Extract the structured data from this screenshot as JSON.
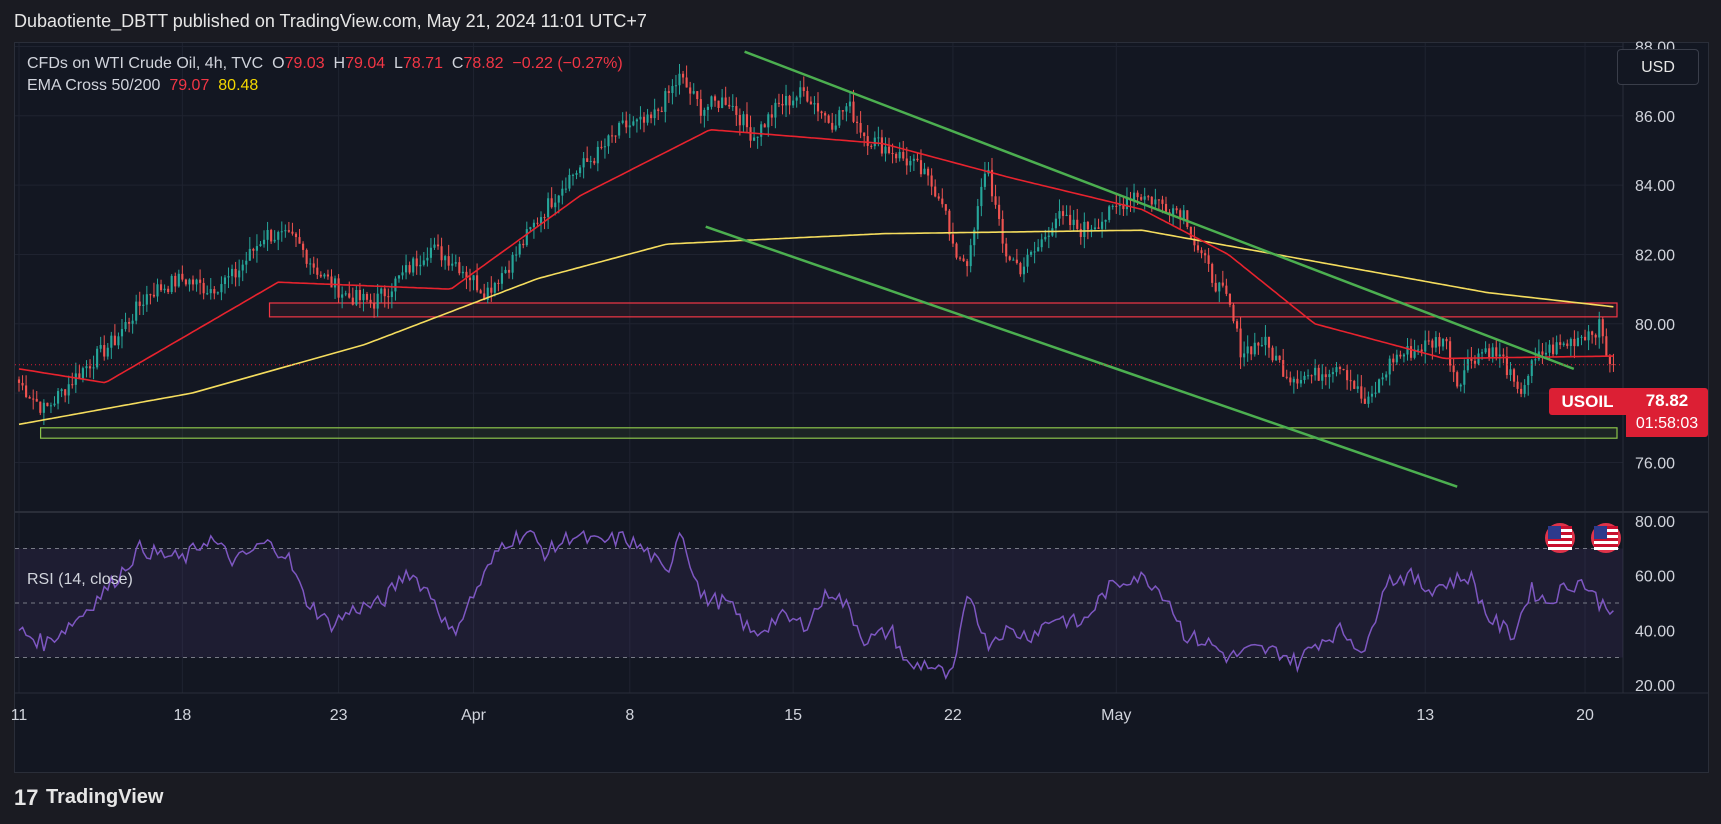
{
  "header": {
    "publisher_line": "Dubaotiente_DBTT published on TradingView.com, May 21, 2024 11:01 UTC+7"
  },
  "legend": {
    "symbol": "CFDs on WTI Crude Oil, 4h, TVC",
    "open_label": "O",
    "open": "79.03",
    "high_label": "H",
    "high": "79.04",
    "low_label": "L",
    "low": "78.71",
    "close_label": "C",
    "close": "78.82",
    "change": "−0.22 (−0.27%)",
    "ema_label": "EMA Cross 50/200",
    "ema50": "79.07",
    "ema200": "80.48"
  },
  "currency_button": "USD",
  "rsi_label": "RSI (14, close)",
  "price_tag": {
    "symbol": "USOIL",
    "price": "78.82",
    "countdown": "01:58:03"
  },
  "footer": {
    "brand": "TradingView",
    "logo_glyph": "17"
  },
  "colors": {
    "background": "#131722",
    "up": "#26a69a",
    "down": "#ef5350",
    "ema50": "#e8232e",
    "ema200": "#f5dd5e",
    "trendline": "#4caf50",
    "resistance_zone": "#f23645",
    "support_zone": "#8bc34a",
    "rsi": "#7e57c2"
  },
  "chart_data": [
    {
      "type": "candlestick",
      "title": "CFDs on WTI Crude Oil, 4h, TVC",
      "x_tick_labels": [
        "11",
        "18",
        "23",
        "Apr",
        "8",
        "15",
        "22",
        "May",
        "13",
        "20"
      ],
      "y_axis": {
        "ticks": [
          76,
          78,
          80,
          82,
          84,
          86,
          88
        ],
        "tick_labels": [
          "76.00",
          "78.00",
          "80.00",
          "82.00",
          "84.00",
          "86.00",
          "88.00"
        ],
        "ylim": [
          74.6,
          88.1
        ]
      },
      "grid": true,
      "close_path_points": [
        [
          0,
          78.3
        ],
        [
          6,
          77.5
        ],
        [
          14,
          78.6
        ],
        [
          22,
          79.5
        ],
        [
          30,
          80.9
        ],
        [
          38,
          81.3
        ],
        [
          44,
          81.0
        ],
        [
          50,
          81.4
        ],
        [
          57,
          82.6
        ],
        [
          64,
          82.4
        ],
        [
          70,
          81.4
        ],
        [
          76,
          80.8
        ],
        [
          82,
          80.6
        ],
        [
          88,
          81.3
        ],
        [
          95,
          82.2
        ],
        [
          101,
          81.8
        ],
        [
          108,
          80.9
        ],
        [
          114,
          81.8
        ],
        [
          120,
          83.0
        ],
        [
          127,
          84.2
        ],
        [
          134,
          84.9
        ],
        [
          140,
          85.7
        ],
        [
          146,
          85.8
        ],
        [
          153,
          87.1
        ],
        [
          158,
          86.2
        ],
        [
          164,
          86.5
        ],
        [
          170,
          85.4
        ],
        [
          176,
          86.3
        ],
        [
          182,
          86.7
        ],
        [
          188,
          85.8
        ],
        [
          192,
          86.3
        ],
        [
          196,
          85.4
        ],
        [
          202,
          85.0
        ],
        [
          208,
          84.5
        ],
        [
          214,
          83.6
        ],
        [
          216,
          82.1
        ],
        [
          220,
          81.8
        ],
        [
          224,
          84.7
        ],
        [
          228,
          82.1
        ],
        [
          232,
          81.6
        ],
        [
          236,
          82.2
        ],
        [
          240,
          83.1
        ],
        [
          246,
          82.7
        ],
        [
          252,
          83.1
        ],
        [
          258,
          83.8
        ],
        [
          264,
          83.5
        ],
        [
          270,
          83.2
        ],
        [
          272,
          82.4
        ],
        [
          276,
          81.4
        ],
        [
          280,
          80.6
        ],
        [
          283,
          79.2
        ],
        [
          288,
          79.5
        ],
        [
          294,
          78.5
        ],
        [
          300,
          78.5
        ],
        [
          306,
          78.9
        ],
        [
          312,
          77.6
        ],
        [
          318,
          79.0
        ],
        [
          324,
          79.3
        ],
        [
          330,
          79.6
        ],
        [
          333,
          78.3
        ],
        [
          336,
          79.0
        ],
        [
          340,
          79.3
        ],
        [
          344,
          78.9
        ],
        [
          347,
          77.9
        ],
        [
          350,
          78.7
        ],
        [
          353,
          79.2
        ],
        [
          358,
          79.4
        ],
        [
          362,
          79.7
        ],
        [
          366,
          79.9
        ],
        [
          368,
          79.0
        ],
        [
          370,
          78.82
        ]
      ],
      "ema50_points": [
        [
          0,
          78.7
        ],
        [
          20,
          78.3
        ],
        [
          60,
          81.2
        ],
        [
          100,
          81.0
        ],
        [
          130,
          83.7
        ],
        [
          160,
          85.6
        ],
        [
          200,
          85.2
        ],
        [
          230,
          84.2
        ],
        [
          260,
          83.3
        ],
        [
          280,
          82.0
        ],
        [
          300,
          80.0
        ],
        [
          330,
          79.0
        ],
        [
          370,
          79.07
        ]
      ],
      "ema200_points": [
        [
          0,
          77.1
        ],
        [
          40,
          78.0
        ],
        [
          80,
          79.4
        ],
        [
          120,
          81.3
        ],
        [
          150,
          82.3
        ],
        [
          200,
          82.6
        ],
        [
          260,
          82.7
        ],
        [
          300,
          81.8
        ],
        [
          340,
          80.9
        ],
        [
          370,
          80.48
        ]
      ],
      "trendlines": [
        {
          "from": [
            168,
            87.85
          ],
          "to": [
            360,
            78.7
          ]
        },
        {
          "from": [
            159,
            82.8
          ],
          "to": [
            333,
            75.3
          ]
        }
      ],
      "zones": [
        {
          "name": "resistance",
          "y_low": 80.2,
          "y_high": 80.6,
          "x_from": 58,
          "x_to": 370
        },
        {
          "name": "support",
          "y_low": 76.7,
          "y_high": 77.0,
          "x_from": 5,
          "x_to": 370
        }
      ],
      "last_price": 78.82
    },
    {
      "type": "line",
      "title": "RSI (14, close)",
      "y_axis": {
        "ticks": [
          20,
          40,
          60,
          80
        ],
        "tick_labels": [
          "20.00",
          "40.00",
          "60.00",
          "80.00"
        ],
        "ylim": [
          17,
          83
        ]
      },
      "band": [
        30,
        70
      ],
      "midline": 50,
      "points": [
        [
          0,
          40
        ],
        [
          6,
          35
        ],
        [
          14,
          45
        ],
        [
          22,
          58
        ],
        [
          28,
          70
        ],
        [
          32,
          68
        ],
        [
          38,
          66
        ],
        [
          44,
          74
        ],
        [
          50,
          65
        ],
        [
          57,
          72
        ],
        [
          62,
          68
        ],
        [
          66,
          52
        ],
        [
          72,
          42
        ],
        [
          78,
          48
        ],
        [
          84,
          50
        ],
        [
          90,
          62
        ],
        [
          96,
          52
        ],
        [
          100,
          38
        ],
        [
          106,
          55
        ],
        [
          112,
          72
        ],
        [
          118,
          76
        ],
        [
          122,
          68
        ],
        [
          128,
          75
        ],
        [
          134,
          72
        ],
        [
          140,
          74
        ],
        [
          146,
          68
        ],
        [
          150,
          60
        ],
        [
          153,
          78
        ],
        [
          158,
          52
        ],
        [
          164,
          50
        ],
        [
          170,
          38
        ],
        [
          176,
          45
        ],
        [
          182,
          42
        ],
        [
          188,
          55
        ],
        [
          192,
          48
        ],
        [
          196,
          36
        ],
        [
          202,
          40
        ],
        [
          206,
          26
        ],
        [
          210,
          28
        ],
        [
          216,
          22
        ],
        [
          220,
          55
        ],
        [
          224,
          35
        ],
        [
          228,
          40
        ],
        [
          234,
          38
        ],
        [
          240,
          45
        ],
        [
          246,
          42
        ],
        [
          252,
          55
        ],
        [
          258,
          60
        ],
        [
          262,
          58
        ],
        [
          266,
          52
        ],
        [
          270,
          38
        ],
        [
          276,
          35
        ],
        [
          280,
          30
        ],
        [
          286,
          33
        ],
        [
          292,
          32
        ],
        [
          296,
          28
        ],
        [
          300,
          35
        ],
        [
          306,
          40
        ],
        [
          312,
          32
        ],
        [
          316,
          58
        ],
        [
          322,
          60
        ],
        [
          326,
          55
        ],
        [
          332,
          58
        ],
        [
          336,
          60
        ],
        [
          340,
          45
        ],
        [
          346,
          38
        ],
        [
          350,
          55
        ],
        [
          354,
          50
        ],
        [
          358,
          56
        ],
        [
          362,
          58
        ],
        [
          366,
          50
        ],
        [
          370,
          48
        ]
      ]
    }
  ]
}
